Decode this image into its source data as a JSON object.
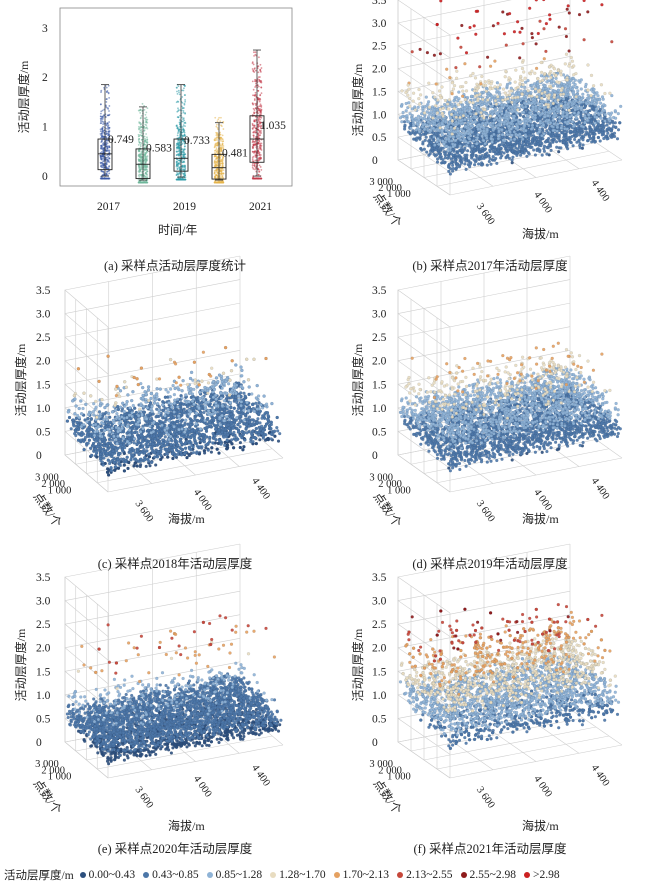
{
  "colors": {
    "bins": [
      "#2c4f7d",
      "#4c77a8",
      "#8fb3d6",
      "#e8dcc0",
      "#e5a161",
      "#c6473a",
      "#8e1b1b",
      "#cc2020"
    ],
    "box_2017": "#3b5aa6",
    "box_2018": "#6fb79a",
    "box_2019": "#2d9aa8",
    "box_2020": "#e6b44c",
    "box_2021": "#c23a4a"
  },
  "legend": {
    "title": "活动层厚度/m",
    "items": [
      "0.00~0.43",
      "0.43~0.85",
      "0.85~1.28",
      "1.28~1.70",
      "1.70~2.13",
      "2.13~2.55",
      "2.55~2.98",
      ">2.98"
    ]
  },
  "captions": {
    "a": "(a) 采样点活动层厚度统计",
    "b": "(b) 采样点2017年活动层厚度",
    "c": "(c) 采样点2018年活动层厚度",
    "d": "(d) 采样点2019年活动层厚度",
    "e": "(e) 采样点2020年活动层厚度",
    "f": "(f) 采样点2021年活动层厚度"
  },
  "panel_a": {
    "ylabel": "活动层厚度/m",
    "xlabel": "时间/年",
    "yticks": [
      "0",
      "1",
      "2",
      "3"
    ],
    "xticks": [
      "2017",
      "2019",
      "2021"
    ]
  },
  "scatter_axes": {
    "zlabel": "活动层厚度/m",
    "xlabel": "海拔/m",
    "ylabel": "点数/个",
    "zticks": [
      "0",
      "0.5",
      "1.0",
      "1.5",
      "2.0",
      "2.5",
      "3.0",
      "3.5"
    ],
    "xticks": [
      "3 600",
      "4 000",
      "4 400"
    ],
    "yticks": [
      "1 000",
      "2 000",
      "3 000"
    ]
  },
  "chart_data": [
    {
      "type": "box",
      "panel": "a",
      "title": "",
      "xlabel": "时间/年",
      "ylabel": "活动层厚度/m",
      "ylim": [
        -0.2,
        3.4
      ],
      "categories": [
        "2017",
        "2018",
        "2019",
        "2020",
        "2021"
      ],
      "xtick_labels": [
        "2017",
        "2019",
        "2021"
      ],
      "mean_labels": [
        "0.749",
        "0.583",
        "0.733",
        "0.481",
        "1.035"
      ],
      "series": [
        {
          "name": "2017",
          "mean": 0.749,
          "q1": 0.13,
          "median": 0.45,
          "q3": 0.75,
          "whisker_low": 0.0,
          "whisker_high": 1.85
        },
        {
          "name": "2018",
          "mean": 0.583,
          "q1": -0.05,
          "median": 0.24,
          "q3": 0.55,
          "whisker_low": -0.08,
          "whisker_high": 1.4
        },
        {
          "name": "2019",
          "mean": 0.733,
          "q1": 0.1,
          "median": 0.36,
          "q3": 0.75,
          "whisker_low": -0.02,
          "whisker_high": 1.85
        },
        {
          "name": "2020",
          "mean": 0.481,
          "q1": -0.06,
          "median": 0.17,
          "q3": 0.44,
          "whisker_low": -0.08,
          "whisker_high": 1.08
        },
        {
          "name": "2021",
          "mean": 1.035,
          "q1": 0.28,
          "median": 0.75,
          "q3": 1.22,
          "whisker_low": 0.0,
          "whisker_high": 2.55
        }
      ]
    },
    {
      "type": "scatter3d",
      "panel": "b",
      "year": "2017",
      "zlim": [
        0,
        3.5
      ],
      "xlim": [
        3300,
        4500
      ],
      "ylim": [
        0,
        3500
      ],
      "mean": 0.749,
      "max": 3.4,
      "n_points": 3500,
      "seed": 17
    },
    {
      "type": "scatter3d",
      "panel": "c",
      "year": "2018",
      "zlim": [
        0,
        3.5
      ],
      "xlim": [
        3300,
        4500
      ],
      "ylim": [
        0,
        3500
      ],
      "mean": 0.583,
      "max": 2.0,
      "n_points": 3500,
      "seed": 18
    },
    {
      "type": "scatter3d",
      "panel": "d",
      "year": "2019",
      "zlim": [
        0,
        3.5
      ],
      "xlim": [
        3300,
        4500
      ],
      "ylim": [
        0,
        3500
      ],
      "mean": 0.733,
      "max": 2.1,
      "n_points": 3500,
      "seed": 19
    },
    {
      "type": "scatter3d",
      "panel": "e",
      "year": "2020",
      "zlim": [
        0,
        3.5
      ],
      "xlim": [
        3300,
        4500
      ],
      "ylim": [
        0,
        3500
      ],
      "mean": 0.481,
      "max": 2.4,
      "n_points": 3500,
      "seed": 20
    },
    {
      "type": "scatter3d",
      "panel": "f",
      "year": "2021",
      "zlim": [
        0,
        3.5
      ],
      "xlim": [
        3300,
        4500
      ],
      "ylim": [
        0,
        3500
      ],
      "mean": 1.035,
      "max": 2.7,
      "n_points": 3500,
      "seed": 21
    }
  ]
}
